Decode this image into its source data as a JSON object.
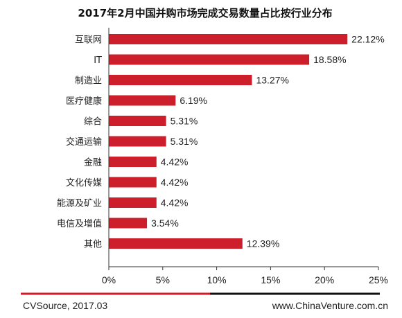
{
  "chart_data": {
    "type": "bar",
    "orientation": "horizontal",
    "title": "2017年2月中国并购市场完成交易数量占比按行业分布",
    "categories": [
      "互联网",
      "IT",
      "制造业",
      "医疗健康",
      "综合",
      "交通运输",
      "金融",
      "文化传媒",
      "能源及矿业",
      "电信及增值",
      "其他"
    ],
    "values": [
      22.12,
      18.58,
      13.27,
      6.19,
      5.31,
      5.31,
      4.42,
      4.42,
      4.42,
      3.54,
      12.39
    ],
    "value_labels": [
      "22.12%",
      "18.58%",
      "13.27%",
      "6.19%",
      "5.31%",
      "5.31%",
      "4.42%",
      "4.42%",
      "4.42%",
      "3.54%",
      "12.39%"
    ],
    "xlim": [
      0,
      25
    ],
    "x_ticks": [
      0,
      5,
      10,
      15,
      20,
      25
    ],
    "x_tick_labels": [
      "0%",
      "5%",
      "10%",
      "15%",
      "20%",
      "25%"
    ],
    "grid": false,
    "bar_color": "#cc1f2b"
  },
  "footer": {
    "source": "CVSource, 2017.03",
    "website": "www.ChinaVenture.com.cn",
    "accent_color": "#d7182a",
    "rule_color": "#111111"
  }
}
